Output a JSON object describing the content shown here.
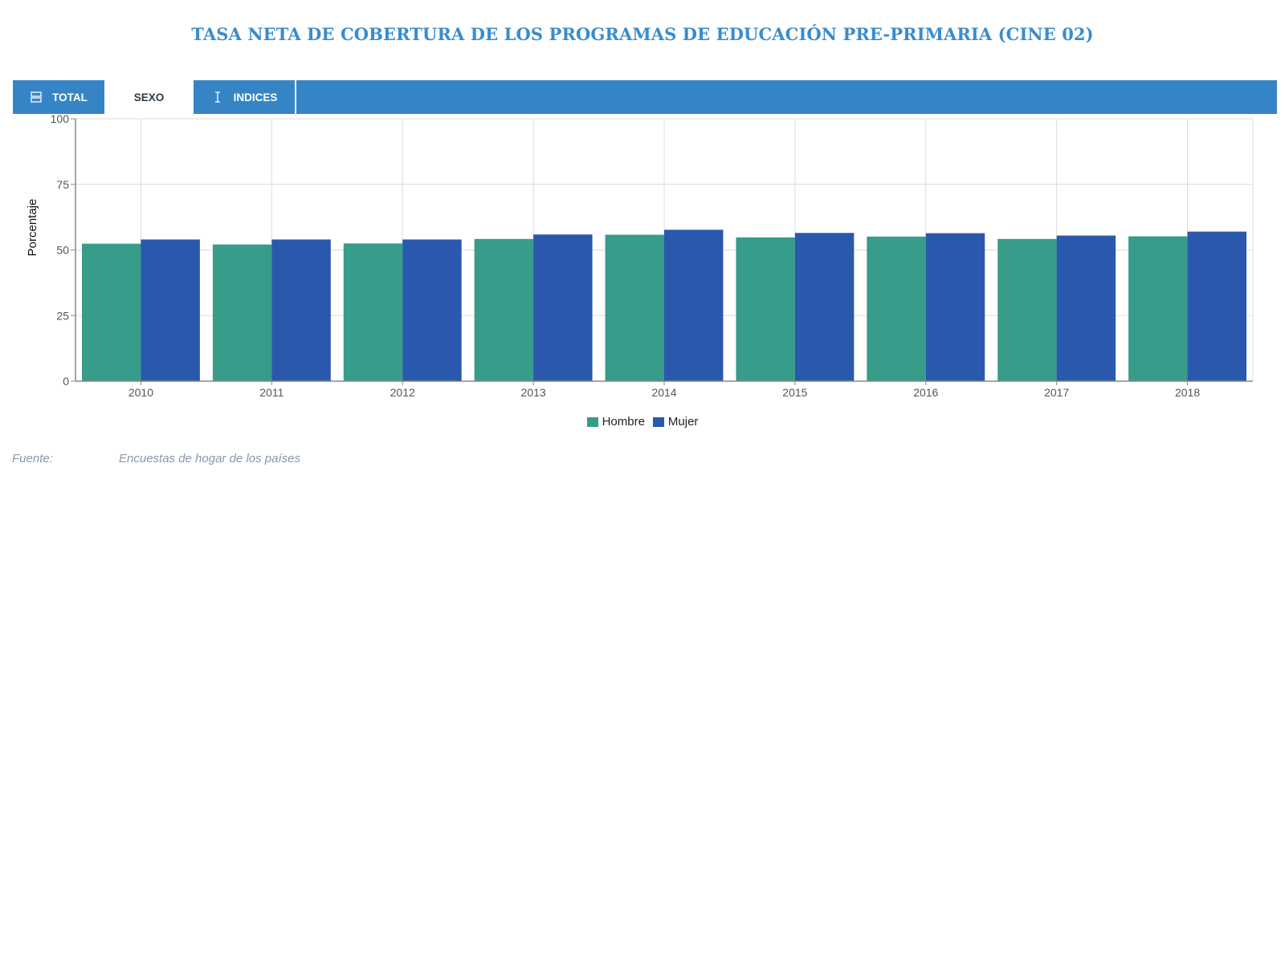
{
  "title": "TASA NETA DE COBERTURA DE LOS PROGRAMAS DE EDUCACIÓN PRE-PRIMARIA (CINE 02)",
  "tabs": [
    {
      "label": "TOTAL",
      "icon": "stacked-rows-icon",
      "active": false
    },
    {
      "label": "SEXO",
      "icon": "",
      "active": true
    },
    {
      "label": "INDICES",
      "icon": "text-cursor-icon",
      "active": false
    }
  ],
  "colors": {
    "accent": "#3585c6",
    "title": "#3a8ccc",
    "hombre": "#379c8a",
    "mujer": "#2a58ad"
  },
  "chart_data": {
    "type": "bar",
    "categories": [
      "2010",
      "2011",
      "2012",
      "2013",
      "2014",
      "2015",
      "2016",
      "2017",
      "2018"
    ],
    "series": [
      {
        "name": "Hombre",
        "values": [
          52.4,
          52.1,
          52.5,
          54.2,
          55.8,
          54.8,
          55.1,
          54.2,
          55.2
        ]
      },
      {
        "name": "Mujer",
        "values": [
          54.0,
          54.0,
          54.0,
          55.9,
          57.7,
          56.5,
          56.4,
          55.5,
          57.0
        ]
      }
    ],
    "xlabel": "",
    "ylabel": "Porcentaje",
    "ylim": [
      0,
      100
    ],
    "yticks": [
      0,
      25,
      50,
      75,
      100
    ],
    "grid": true,
    "legend": "bottom-center"
  },
  "source": {
    "label": "Fuente:",
    "value": "Encuestas de hogar de los países"
  }
}
